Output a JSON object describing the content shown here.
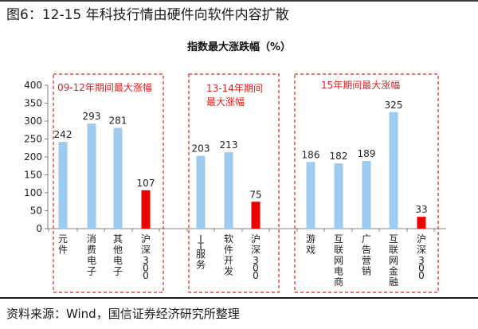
{
  "figure_title": "图6：12-15 年科技行情由硬件向软件内容扩散",
  "source_note": "资料来源：Wind，国信证券经济研究所整理",
  "chart_data": {
    "type": "bar",
    "title": "指数最大涨跌幅（%）",
    "ylim": [
      0,
      400
    ],
    "yticks": [
      0,
      50,
      100,
      150,
      200,
      250,
      300,
      350,
      400
    ],
    "grid": false,
    "colors": {
      "sector": "#9ecbf0",
      "benchmark": "#ee0000",
      "group_frame": "#e02020"
    },
    "categories": [
      "元件",
      "消费电子",
      "其他电子",
      "沪深300",
      "IT服务",
      "软件开发",
      "沪深300",
      "游戏",
      "互联网电商",
      "广告营销",
      "互联网金融",
      "沪深300"
    ],
    "values": [
      242,
      293,
      281,
      107,
      203,
      213,
      75,
      186,
      182,
      189,
      325,
      33
    ],
    "highlight": [
      false,
      false,
      false,
      true,
      false,
      false,
      true,
      false,
      false,
      false,
      false,
      true
    ],
    "groups": [
      {
        "label": "09-12年期间最大涨幅",
        "start": 0,
        "end": 3
      },
      {
        "label": "13-14年期间最大涨幅",
        "start": 4,
        "end": 6
      },
      {
        "label": "15年期间最大涨幅",
        "start": 7,
        "end": 11
      }
    ]
  }
}
